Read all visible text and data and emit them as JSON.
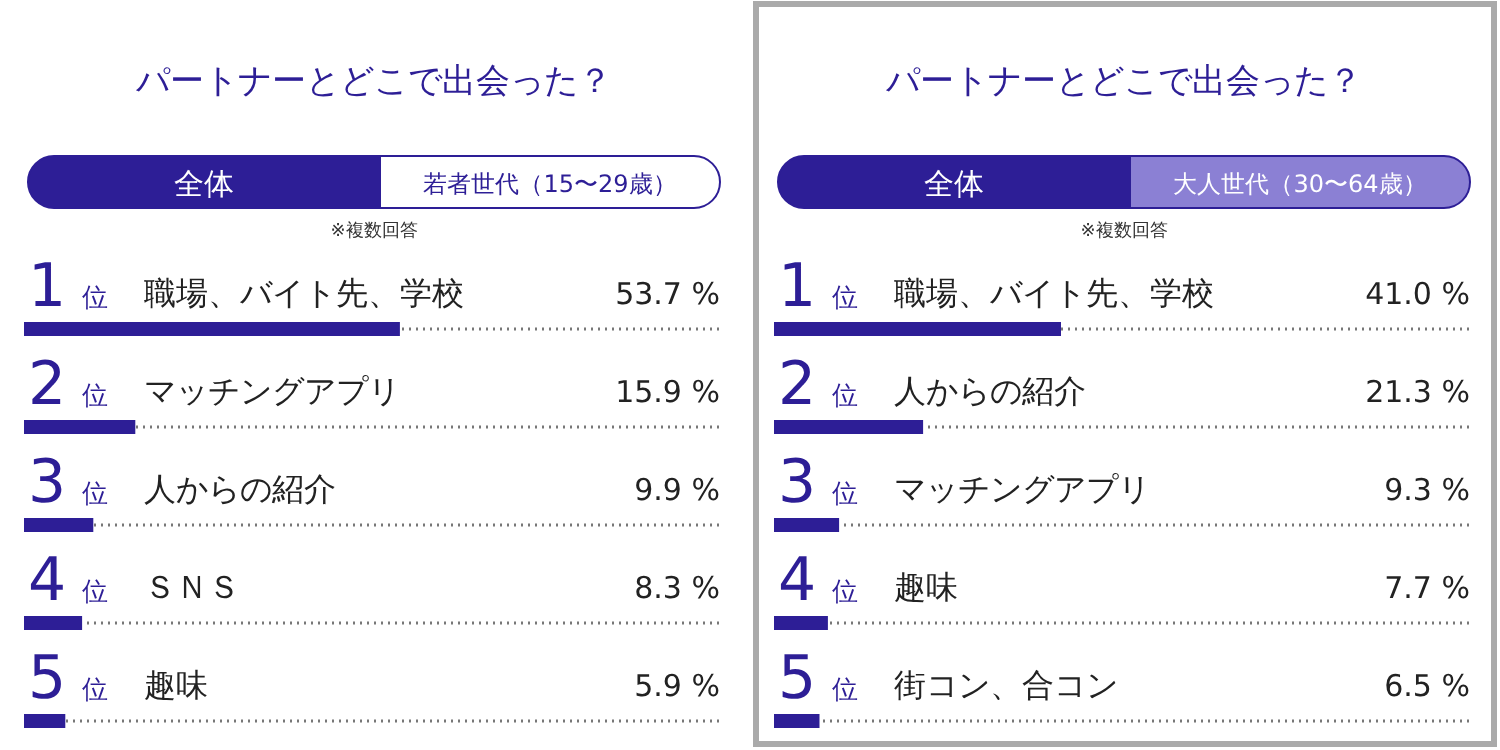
{
  "chart_data": [
    {
      "type": "bar",
      "orientation": "horizontal",
      "title": "パートナーとどこで出会った？",
      "subtitle": "※複数回答",
      "categories": [
        "職場、バイト先、学校",
        "マッチングアプリ",
        "人からの紹介",
        "ＳＮＳ",
        "趣味"
      ],
      "values": [
        53.7,
        15.9,
        9.9,
        8.3,
        5.9
      ],
      "grid": true,
      "value_labels": [
        "53.7 %",
        "15.9 %",
        "9.9 %",
        "8.3 %",
        "5.9 %"
      ],
      "color": "#2d1e96",
      "xlim": [
        0,
        100
      ],
      "relative": false,
      "annotations": [
        "全体",
        "若者世代（15〜29歳）",
        {
          "text": "1 位",
          "y": "職場、バイト先、学校"
        },
        {
          "text": "2 位",
          "y": "マッチングアプリ"
        },
        {
          "text": "3 位",
          "y": "人からの紹介"
        },
        {
          "text": "4 位",
          "y": "ＳＮＳ"
        },
        {
          "text": "5 位",
          "y": "趣味"
        }
      ]
    },
    {
      "type": "bar",
      "orientation": "horizontal",
      "title": "パートナーとどこで出会った？",
      "subtitle": "※複数回答",
      "categories": [
        "職場、バイト先、学校",
        "人からの紹介",
        "マッチングアプリ",
        "趣味",
        "街コン、合コン"
      ],
      "values": [
        41.0,
        21.3,
        9.3,
        7.7,
        6.5
      ],
      "grid": true,
      "value_labels": [
        "41.0 %",
        "21.3 %",
        "9.3 %",
        "7.7 %",
        "6.5 %"
      ],
      "color": "#2d1e96",
      "xlim": [
        0,
        100
      ],
      "relative": false,
      "annotations": [
        "全体",
        "大人世代（30〜64歳）",
        {
          "text": "1 位",
          "y": "職場、バイト先、学校"
        },
        {
          "text": "2 位",
          "y": "人からの紹介"
        },
        {
          "text": "3 位",
          "y": "マッチングアプリ"
        },
        {
          "text": "4 位",
          "y": "趣味"
        },
        {
          "text": "5 位",
          "y": "街コン、合コン"
        }
      ]
    }
  ]
}
